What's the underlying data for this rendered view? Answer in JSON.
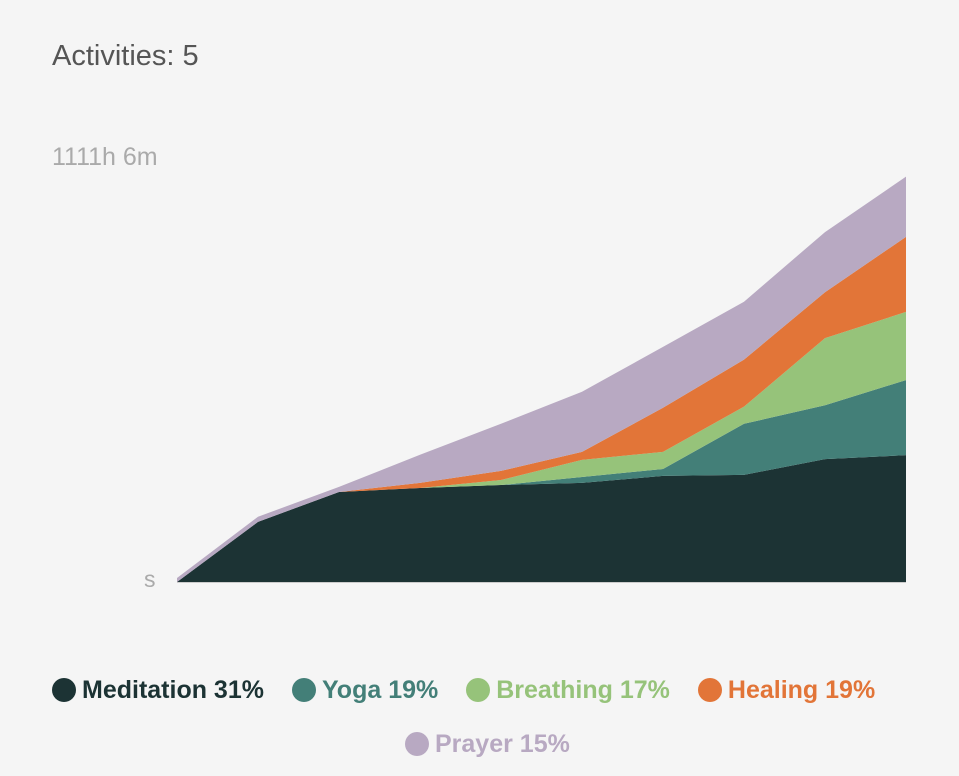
{
  "header": {
    "title": "Activities: 5"
  },
  "chart_data": {
    "type": "area",
    "stacked": true,
    "title": "Activities: 5",
    "y_max_label": "1111h 6m",
    "y_min_label": "s",
    "ylim": [
      0,
      1111.1
    ],
    "x": [
      0,
      1,
      2,
      3,
      4,
      5,
      6,
      7,
      8,
      9
    ],
    "series": [
      {
        "name": "Meditation",
        "percent": "31%",
        "color": "#1c3334",
        "values": [
          0,
          165,
          247,
          258,
          266,
          272,
          291,
          294,
          337,
          348
        ]
      },
      {
        "name": "Yoga",
        "percent": "19%",
        "color": "#437f78",
        "values": [
          0,
          0,
          0,
          0,
          0,
          16,
          19,
          140,
          148,
          206
        ]
      },
      {
        "name": "Breathing",
        "percent": "17%",
        "color": "#96c37a",
        "values": [
          0,
          0,
          0,
          0,
          14,
          47,
          47,
          47,
          184,
          187
        ]
      },
      {
        "name": "Healing",
        "percent": "19%",
        "color": "#e27538",
        "values": [
          0,
          0,
          0,
          14,
          25,
          22,
          121,
          129,
          126,
          206
        ]
      },
      {
        "name": "Prayer",
        "percent": "15%",
        "color": "#b8a9c2",
        "values": [
          11,
          14,
          14,
          77,
          129,
          165,
          167,
          159,
          165,
          165
        ]
      }
    ],
    "legend": {
      "placement": "bottom",
      "items": [
        "Meditation 31%",
        "Yoga 19%",
        "Breathing 17%",
        "Healing 19%",
        "Prayer 15%"
      ]
    }
  }
}
